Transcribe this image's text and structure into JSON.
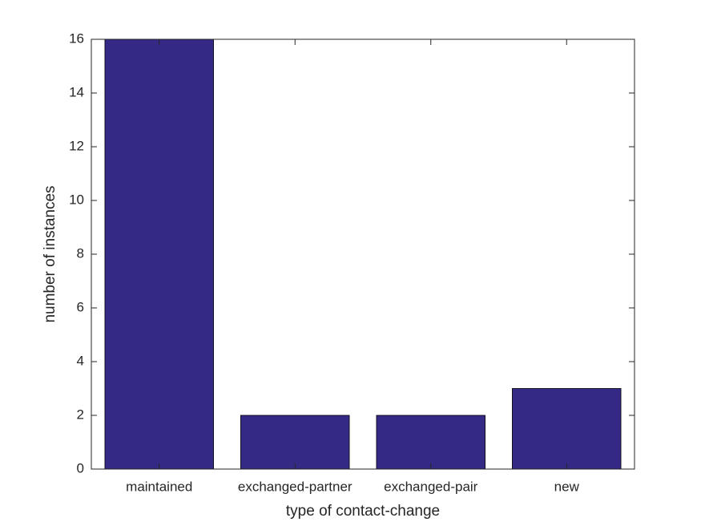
{
  "chart_data": {
    "type": "bar",
    "xlabel": "type of contact-change",
    "ylabel": "number of instances",
    "categories": [
      "maintained",
      "exchanged-partner",
      "exchanged-pair",
      "new"
    ],
    "values": [
      16,
      2,
      2,
      3
    ],
    "color": "#342a86",
    "ylim": [
      0,
      16
    ],
    "yticks": [
      0,
      2,
      4,
      6,
      8,
      10,
      12,
      14,
      16
    ],
    "grid": false
  }
}
